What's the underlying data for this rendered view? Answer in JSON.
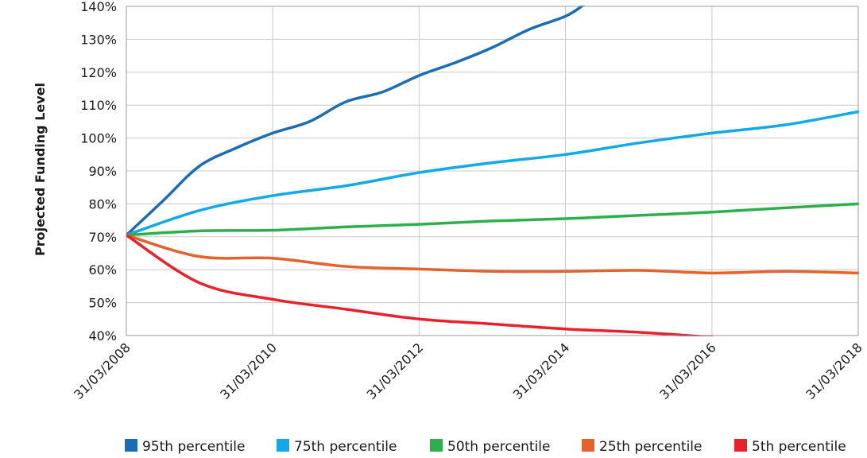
{
  "chart_data": {
    "type": "line",
    "title": "",
    "xlabel": "",
    "ylabel": "Projected Funding Level",
    "xlim": [
      "31/03/2008",
      "31/03/2018"
    ],
    "ylim": [
      40,
      140
    ],
    "grid": true,
    "legend_position": "bottom",
    "x_ticks": [
      "31/03/2008",
      "31/03/2010",
      "31/03/2012",
      "31/03/2014",
      "31/03/2016",
      "31/03/2018"
    ],
    "y_ticks": [
      "40%",
      "50%",
      "60%",
      "70%",
      "80%",
      "90%",
      "100%",
      "110%",
      "120%",
      "130%",
      "140%"
    ],
    "series": [
      {
        "name": "95th percentile",
        "color": "#1a6db3",
        "points": [
          [
            "31/03/2008",
            70.5
          ],
          [
            "31/03/2008 + 6m",
            81
          ],
          [
            "31/03/2009",
            91.5
          ],
          [
            "31/03/2009 + 6m",
            97
          ],
          [
            "31/03/2010",
            101.5
          ],
          [
            "31/03/2010 + 6m",
            105
          ],
          [
            "31/03/2011",
            111
          ],
          [
            "31/03/2011 + 6m",
            114
          ],
          [
            "31/03/2012",
            119
          ],
          [
            "31/03/2012 + 6m",
            123
          ],
          [
            "31/03/2013",
            127.5
          ],
          [
            "31/03/2013 + 6m",
            133
          ],
          [
            "31/03/2014",
            137
          ],
          [
            "31/03/2014 + 3m",
            140.5
          ]
        ]
      },
      {
        "name": "75th percentile",
        "color": "#12a9e6",
        "points": [
          [
            "31/03/2008",
            70.5
          ],
          [
            "31/03/2009",
            78
          ],
          [
            "31/03/2010",
            82.5
          ],
          [
            "31/03/2011",
            85.5
          ],
          [
            "31/03/2012",
            89.5
          ],
          [
            "31/03/2013",
            92.5
          ],
          [
            "31/03/2014",
            95
          ],
          [
            "31/03/2015",
            98.5
          ],
          [
            "31/03/2016",
            101.5
          ],
          [
            "31/03/2017",
            104
          ],
          [
            "31/03/2018",
            108
          ]
        ]
      },
      {
        "name": "50th percentile",
        "color": "#2db04b",
        "points": [
          [
            "31/03/2008",
            70.5
          ],
          [
            "31/03/2009",
            71.8
          ],
          [
            "31/03/2010",
            72
          ],
          [
            "31/03/2011",
            73
          ],
          [
            "31/03/2012",
            73.8
          ],
          [
            "31/03/2013",
            74.8
          ],
          [
            "31/03/2014",
            75.5
          ],
          [
            "31/03/2015",
            76.5
          ],
          [
            "31/03/2016",
            77.5
          ],
          [
            "31/03/2017",
            78.8
          ],
          [
            "31/03/2018",
            80
          ]
        ]
      },
      {
        "name": "25th percentile",
        "color": "#e2632b",
        "points": [
          [
            "31/03/2008",
            70.5
          ],
          [
            "31/03/2009",
            64
          ],
          [
            "31/03/2010",
            63.5
          ],
          [
            "31/03/2011",
            61
          ],
          [
            "31/03/2012",
            60.2
          ],
          [
            "31/03/2013",
            59.5
          ],
          [
            "31/03/2014",
            59.5
          ],
          [
            "31/03/2015",
            59.8
          ],
          [
            "31/03/2016",
            59
          ],
          [
            "31/03/2017",
            59.5
          ],
          [
            "31/03/2018",
            59
          ]
        ]
      },
      {
        "name": "5th percentile",
        "color": "#e8222a",
        "points": [
          [
            "31/03/2008",
            70.5
          ],
          [
            "31/03/2009",
            56
          ],
          [
            "31/03/2010",
            51
          ],
          [
            "31/03/2011",
            48
          ],
          [
            "31/03/2012",
            45
          ],
          [
            "31/03/2013",
            43.5
          ],
          [
            "31/03/2014",
            42
          ],
          [
            "31/03/2015",
            41
          ],
          [
            "31/03/2016",
            39.5
          ]
        ]
      }
    ]
  }
}
